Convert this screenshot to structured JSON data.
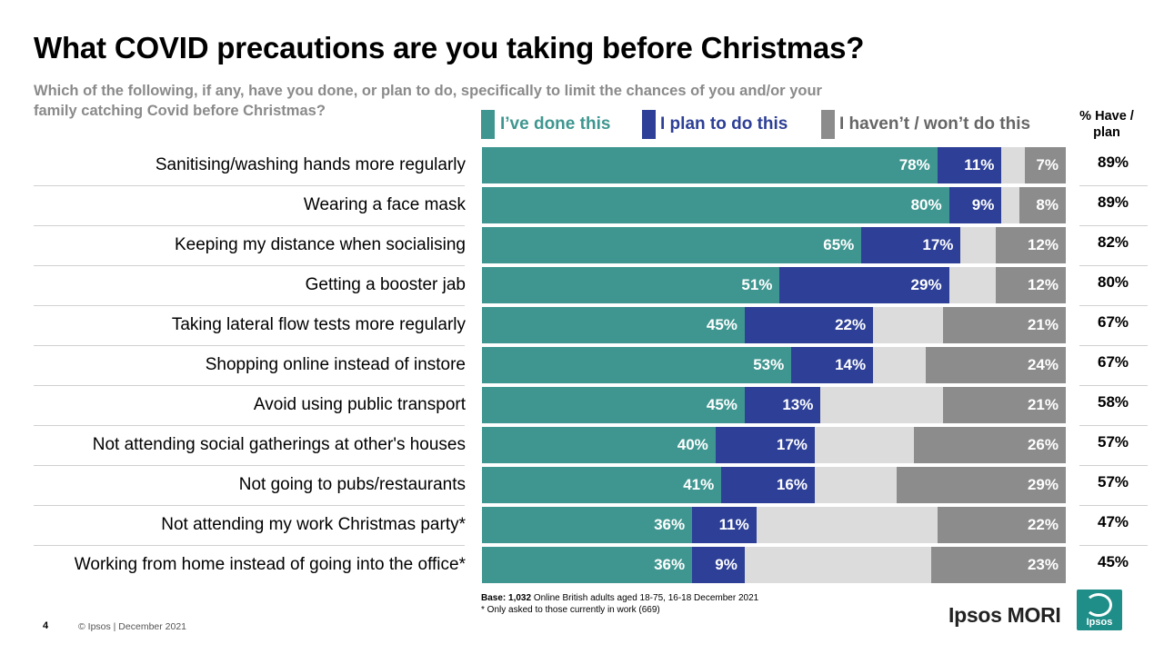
{
  "title": "What COVID precautions are you taking before Christmas?",
  "subtitle": "Which of the following, if any, have you done, or plan to do, specifically to limit the chances of you and/or your family catching Covid before Christmas?",
  "have_plan_header": "% Have / plan",
  "colors": {
    "done": "#3f9690",
    "plan": "#2d3f96",
    "nothing_gap": "#dcdcdc",
    "havent": "#8c8c8c"
  },
  "chart_data": {
    "type": "bar",
    "orientation": "horizontal-stacked",
    "title": "What COVID precautions are you taking before Christmas?",
    "xlim": [
      0,
      100
    ],
    "legend": {
      "position": "top",
      "entries": [
        "I’ve done this",
        "I plan to do this",
        "I haven’t / won’t do this"
      ]
    },
    "categories": [
      "Sanitising/washing hands more regularly",
      "Wearing a face mask",
      "Keeping my distance when socialising",
      "Getting a booster jab",
      "Taking lateral flow tests more regularly",
      "Shopping online instead of instore",
      "Avoid using public transport",
      "Not attending social gatherings at other's houses",
      "Not going to pubs/restaurants",
      "Not attending my work Christmas party*",
      "Working from home instead of going into the office*"
    ],
    "series": [
      {
        "name": "I’ve done this",
        "values": [
          78,
          80,
          65,
          51,
          45,
          53,
          45,
          40,
          41,
          36,
          36
        ]
      },
      {
        "name": "I plan to do this",
        "values": [
          11,
          9,
          17,
          29,
          22,
          14,
          13,
          17,
          16,
          11,
          9
        ]
      },
      {
        "name": "I haven’t / won’t do this",
        "values": [
          7,
          8,
          12,
          12,
          21,
          24,
          21,
          26,
          29,
          22,
          23
        ]
      }
    ],
    "have_plan": [
      "89%",
      "89%",
      "82%",
      "80%",
      "67%",
      "67%",
      "58%",
      "57%",
      "57%",
      "47%",
      "45%"
    ]
  },
  "footer": {
    "base_label": "Base: 1,032",
    "base_text": "Online British adults aged 18-75, 16-18 December 2021",
    "note": "* Only asked to those currently in work (669)",
    "page_number": "4",
    "copyright": "© Ipsos | December 2021",
    "brand": "Ipsos MORI",
    "logo_text": "Ipsos"
  }
}
